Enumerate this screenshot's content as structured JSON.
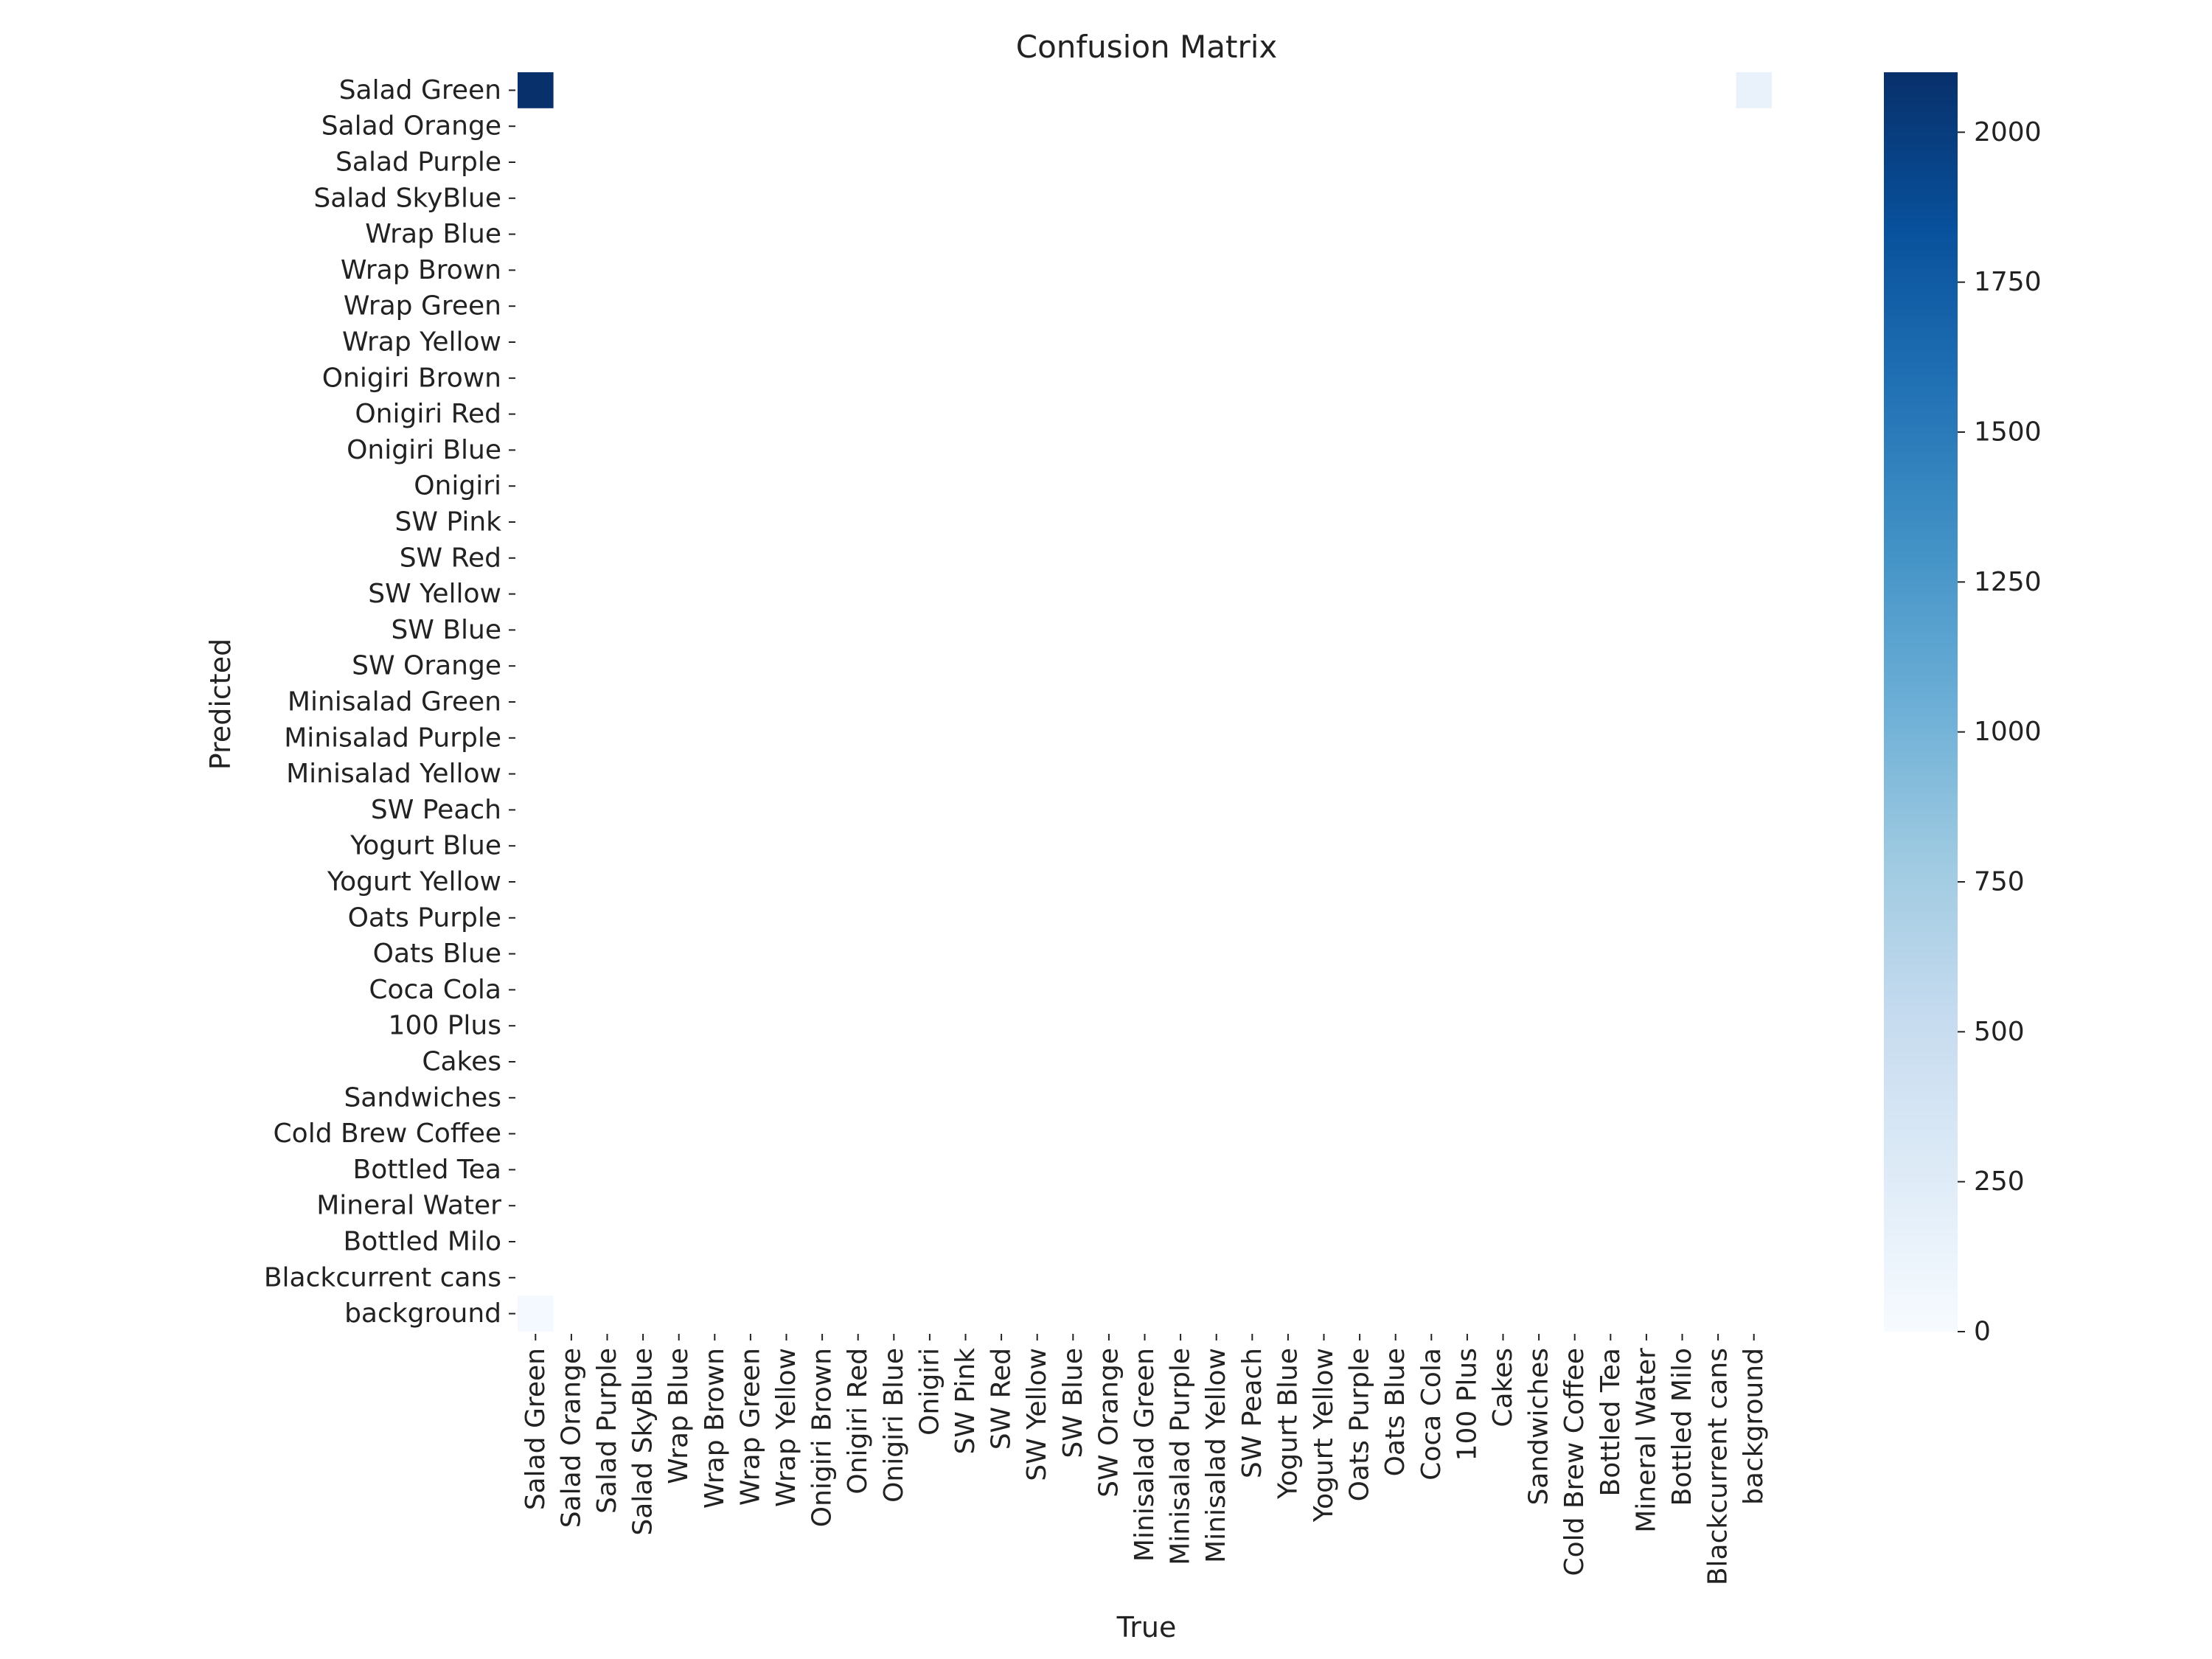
{
  "chart_data": {
    "type": "heatmap",
    "title": "Confusion Matrix",
    "xlabel": "True",
    "ylabel": "Predicted",
    "x_categories": [
      "Salad Green",
      "Salad Orange",
      "Salad Purple",
      "Salad SkyBlue",
      "Wrap Blue",
      "Wrap Brown",
      "Wrap Green",
      "Wrap Yellow",
      "Onigiri Brown",
      "Onigiri Red",
      "Onigiri Blue",
      "Onigiri",
      "SW Pink",
      "SW Red",
      "SW Yellow",
      "SW Blue",
      "SW Orange",
      "Minisalad Green",
      "Minisalad Purple",
      "Minisalad Yellow",
      "SW Peach",
      "Yogurt Blue",
      "Yogurt Yellow",
      "Oats Purple",
      "Oats Blue",
      "Coca Cola",
      "100 Plus",
      "Cakes",
      "Sandwiches",
      "Cold Brew Coffee",
      "Bottled Tea",
      "Mineral Water",
      "Bottled Milo",
      "Blackcurrent cans",
      "background"
    ],
    "y_categories": [
      "Salad Green",
      "Salad Orange",
      "Salad Purple",
      "Salad SkyBlue",
      "Wrap Blue",
      "Wrap Brown",
      "Wrap Green",
      "Wrap Yellow",
      "Onigiri Brown",
      "Onigiri Red",
      "Onigiri Blue",
      "Onigiri",
      "SW Pink",
      "SW Red",
      "SW Yellow",
      "SW Blue",
      "SW Orange",
      "Minisalad Green",
      "Minisalad Purple",
      "Minisalad Yellow",
      "SW Peach",
      "Yogurt Blue",
      "Yogurt Yellow",
      "Oats Purple",
      "Oats Blue",
      "Coca Cola",
      "100 Plus",
      "Cakes",
      "Sandwiches",
      "Cold Brew Coffee",
      "Bottled Tea",
      "Mineral Water",
      "Bottled Milo",
      "Blackcurrent cans",
      "background"
    ],
    "cells": [
      {
        "true": "Salad Green",
        "predicted": "Salad Green",
        "value": 2100
      },
      {
        "true": "background",
        "predicted": "Salad Green",
        "value": 150
      },
      {
        "true": "Salad Green",
        "predicted": "background",
        "value": 40
      }
    ],
    "colorscale": "Blues",
    "vmin": 0,
    "vmax": 2100,
    "colorbar_ticks": [
      0,
      250,
      500,
      750,
      1000,
      1250,
      1500,
      1750,
      2000
    ],
    "grid": false
  }
}
